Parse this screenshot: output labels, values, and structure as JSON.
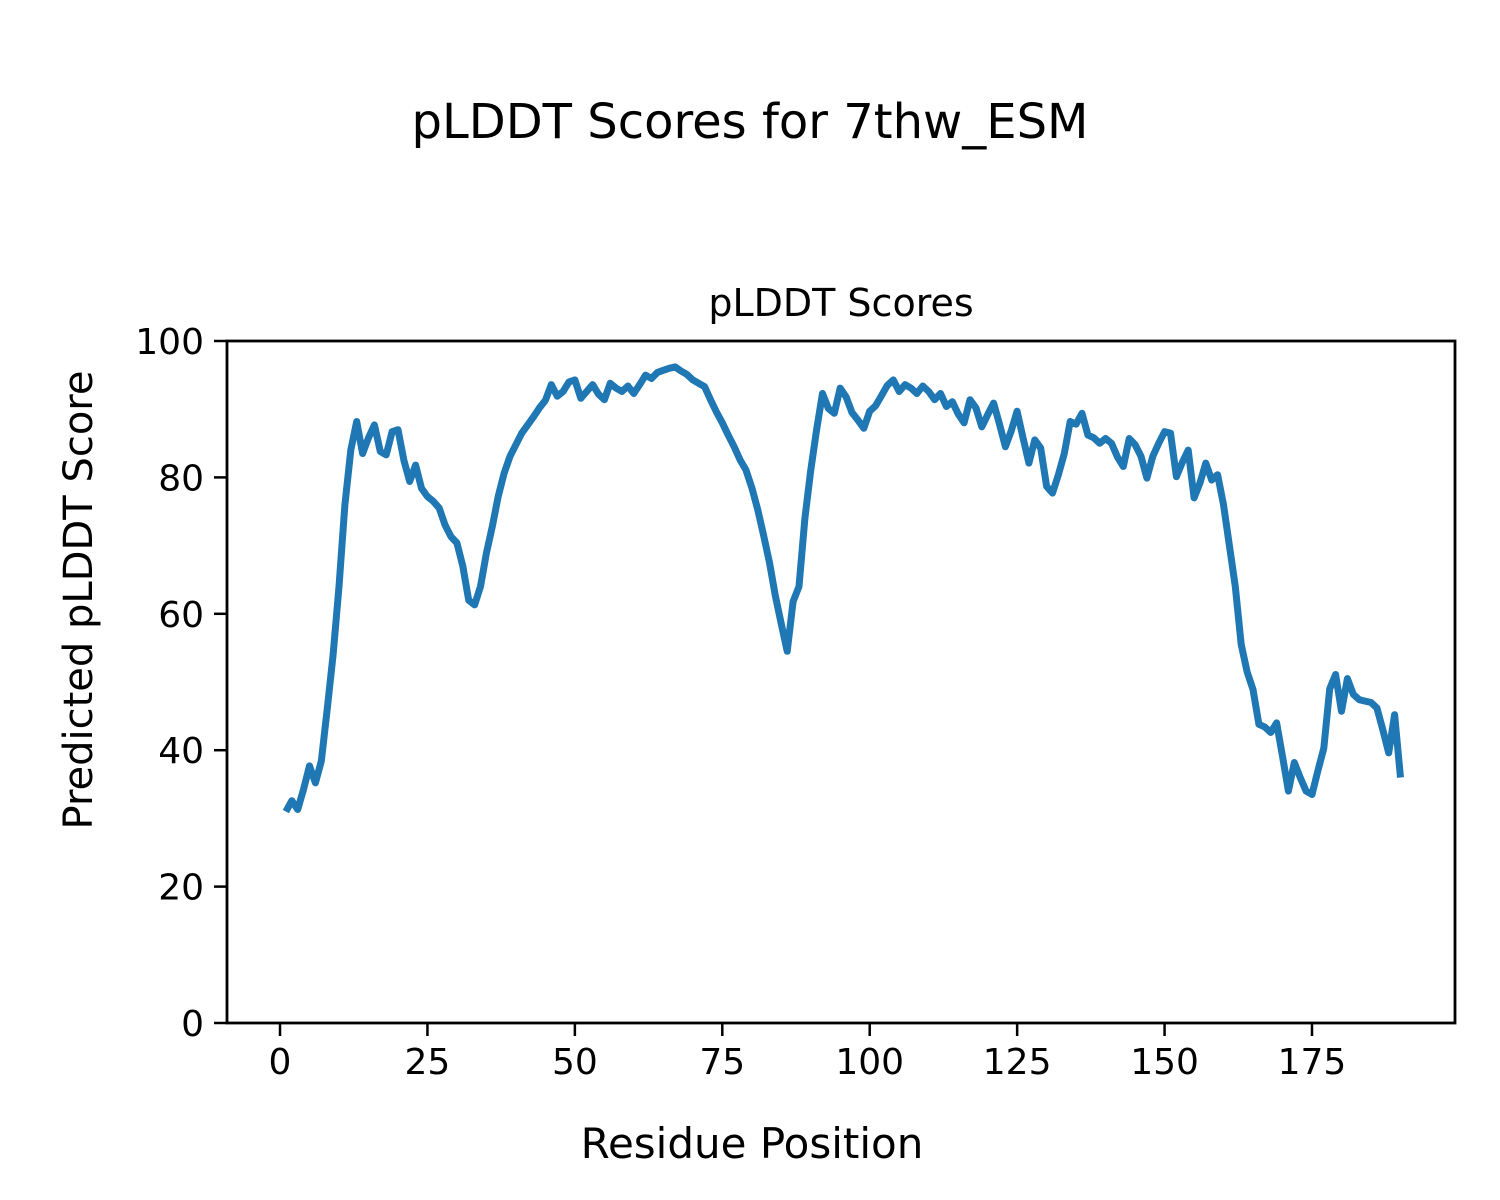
{
  "figure": {
    "suptitle": "pLDDT Scores for 7thw_ESM",
    "background_color": "#ffffff",
    "text_color": "#000000"
  },
  "chart_data": {
    "type": "line",
    "title": "pLDDT Scores",
    "xlabel": "Residue Position",
    "ylabel": "Predicted pLDDT Score",
    "legend": null,
    "grid": false,
    "line_color": "#1f77b4",
    "xlim": [
      -8.99,
      199.25
    ],
    "ylim": [
      0,
      100
    ],
    "xticks": [
      0,
      25,
      50,
      75,
      100,
      125,
      150,
      175
    ],
    "yticks": [
      0,
      20,
      40,
      60,
      80,
      100
    ],
    "x": [
      1,
      2,
      3,
      4,
      5,
      6,
      7,
      8,
      9,
      10,
      11,
      12,
      13,
      14,
      15,
      16,
      17,
      18,
      19,
      20,
      21,
      22,
      23,
      24,
      25,
      26,
      27,
      28,
      29,
      30,
      31,
      32,
      33,
      34,
      35,
      36,
      37,
      38,
      39,
      40,
      41,
      42,
      43,
      44,
      45,
      46,
      47,
      48,
      49,
      50,
      51,
      52,
      53,
      54,
      55,
      56,
      57,
      58,
      59,
      60,
      61,
      62,
      63,
      64,
      65,
      66,
      67,
      68,
      69,
      70,
      71,
      72,
      73,
      74,
      75,
      76,
      77,
      78,
      79,
      80,
      81,
      82,
      83,
      84,
      85,
      86,
      87,
      88,
      89,
      90,
      91,
      92,
      93,
      94,
      95,
      96,
      97,
      98,
      99,
      100,
      101,
      102,
      103,
      104,
      105,
      106,
      107,
      108,
      109,
      110,
      111,
      112,
      113,
      114,
      115,
      116,
      117,
      118,
      119,
      120,
      121,
      122,
      123,
      124,
      125,
      126,
      127,
      128,
      129,
      130,
      131,
      132,
      133,
      134,
      135,
      136,
      137,
      138,
      139,
      140,
      141,
      142,
      143,
      144,
      145,
      146,
      147,
      148,
      149,
      150,
      151,
      152,
      153,
      154,
      155,
      156,
      157,
      158,
      159,
      160,
      161,
      162,
      163,
      164,
      165,
      166,
      167,
      168,
      169,
      170,
      171,
      172,
      173,
      174,
      175,
      176,
      177,
      178,
      179,
      180,
      181,
      182,
      183,
      184,
      185,
      186,
      187,
      188,
      189,
      190
    ],
    "values": [
      31.0,
      32.6,
      31.3,
      34.3,
      37.7,
      35.2,
      38.4,
      46.0,
      54.0,
      64.0,
      76.0,
      84.0,
      88.2,
      83.5,
      85.8,
      87.7,
      83.8,
      83.3,
      86.7,
      87.0,
      82.5,
      79.4,
      81.8,
      78.4,
      77.2,
      76.5,
      75.5,
      73.0,
      71.3,
      70.4,
      67.0,
      62.0,
      61.3,
      64.0,
      68.9,
      72.8,
      77.2,
      80.6,
      83.1,
      84.8,
      86.5,
      87.7,
      88.9,
      90.2,
      91.3,
      93.6,
      91.9,
      92.6,
      94.0,
      94.3,
      91.6,
      92.6,
      93.6,
      92.2,
      91.4,
      93.8,
      93.1,
      92.6,
      93.4,
      92.3,
      93.6,
      95.0,
      94.5,
      95.4,
      95.7,
      96.0,
      96.2,
      95.6,
      95.1,
      94.3,
      93.8,
      93.3,
      91.4,
      89.6,
      88.0,
      86.2,
      84.5,
      82.6,
      81.1,
      78.5,
      75.3,
      71.5,
      67.5,
      62.6,
      58.5,
      54.5,
      61.8,
      64.0,
      74.0,
      81.0,
      87.0,
      92.3,
      90.1,
      89.4,
      93.1,
      91.8,
      89.5,
      88.4,
      87.2,
      89.7,
      90.5,
      92.0,
      93.5,
      94.3,
      92.6,
      93.6,
      93.1,
      92.3,
      93.4,
      92.6,
      91.4,
      92.3,
      90.4,
      91.1,
      89.3,
      88.0,
      91.4,
      90.2,
      87.4,
      89.2,
      90.9,
      87.8,
      84.5,
      86.8,
      89.7,
      85.8,
      82.1,
      85.5,
      84.3,
      78.7,
      77.7,
      80.4,
      83.5,
      88.2,
      87.8,
      89.4,
      86.2,
      85.8,
      85.0,
      85.7,
      85.0,
      83.0,
      81.6,
      85.7,
      84.8,
      83.1,
      79.9,
      83.1,
      85.0,
      86.7,
      86.5,
      80.1,
      82.2,
      84.0,
      77.0,
      79.2,
      82.1,
      79.6,
      80.4,
      76.0,
      70.0,
      64.0,
      55.5,
      51.5,
      48.9,
      43.8,
      43.4,
      42.6,
      44.0,
      39.1,
      34.0,
      38.2,
      36.0,
      34.0,
      33.5,
      37.0,
      40.3,
      49.0,
      51.1,
      45.7,
      50.5,
      48.2,
      47.4,
      47.2,
      47.0,
      46.2,
      43.0,
      39.6,
      45.2,
      36.0
    ]
  }
}
